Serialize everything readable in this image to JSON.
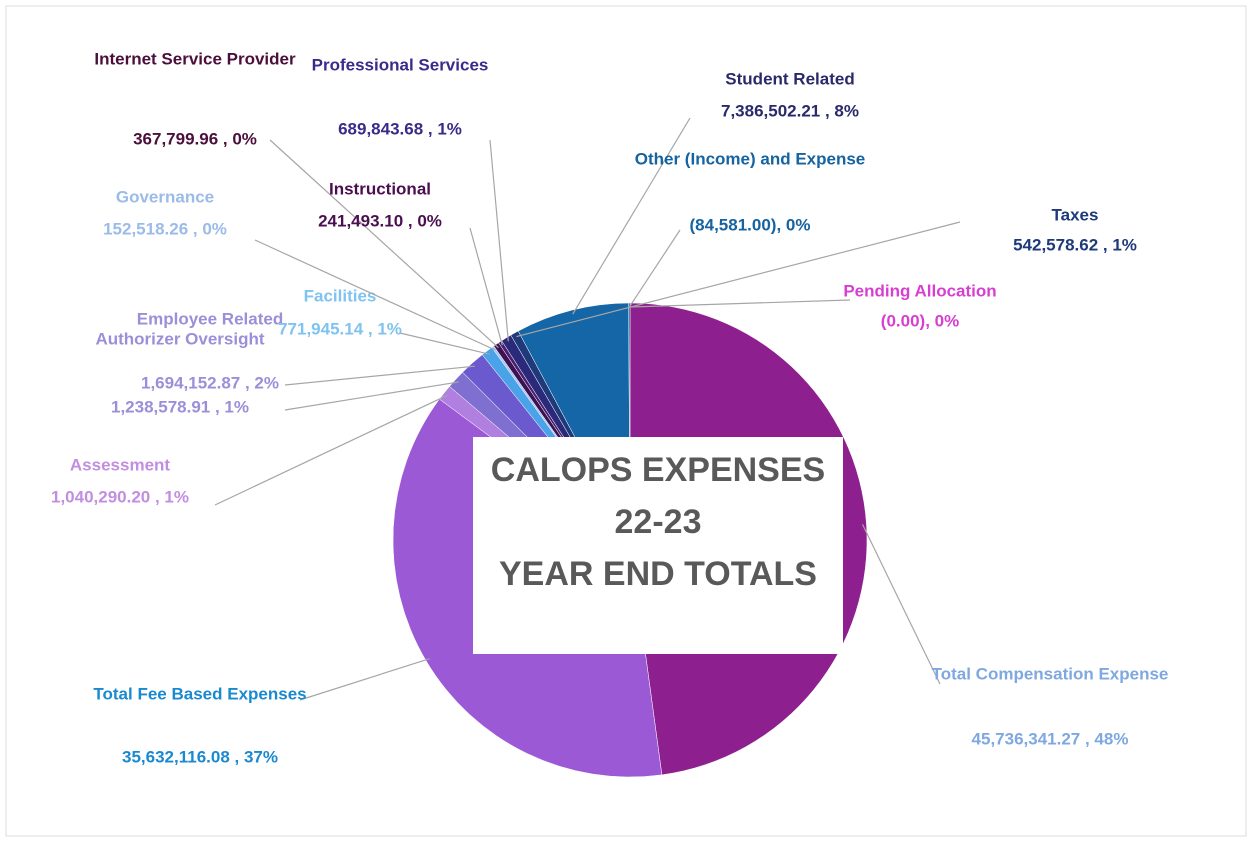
{
  "chart_data": {
    "type": "pie",
    "title": [
      "CALOPS EXPENSES",
      "22-23",
      "YEAR END TOTALS"
    ],
    "categories": [
      "Pending Allocation",
      "Total Compensation Expense",
      "Total Fee Based Expenses",
      "Assessment",
      "Authorizer Oversight",
      "Employee Related",
      "Facilities",
      "Governance",
      "Internet Service Provider",
      "Instructional",
      "Professional Services",
      "Taxes",
      "Student Related",
      "Other (Income) and Expense"
    ],
    "values": [
      0,
      45736341.27,
      35632116.08,
      1040290.2,
      1238578.91,
      1694152.87,
      771945.14,
      152518.26,
      367799.96,
      241493.1,
      689843.68,
      542578.62,
      7386502.21,
      -84581.0
    ],
    "value_labels": [
      "(0.00), 0%",
      "45,736,341.27 , 48%",
      "35,632,116.08 , 37%",
      "1,040,290.20 , 1%",
      "1,238,578.91 , 1%",
      "1,694,152.87 , 2%",
      "771,945.14 , 1%",
      "152,518.26 , 0%",
      "367,799.96 , 0%",
      "241,493.10 , 0%",
      "689,843.68 , 1%",
      "542,578.62 , 1%",
      "7,386,502.21 , 8%",
      "(84,581.00), 0%"
    ],
    "colors": [
      "#d63fd1",
      "#8e1f8e",
      "#9b59d6",
      "#b07fe0",
      "#7e6fd0",
      "#6a5acd",
      "#4aa3e8",
      "#a8c4f0",
      "#3d1255",
      "#4a2070",
      "#2b2a7a",
      "#1f3a7a",
      "#1466a6",
      "#1a5d91"
    ],
    "label_colors": [
      "#d63fd1",
      "#7fa8e0",
      "#1a8ad0",
      "#c28ee0",
      "#9a8fd8",
      "#9a8fd8",
      "#7fc3f0",
      "#9bbbe8",
      "#4a0f3a",
      "#4a0f50",
      "#3b2a8a",
      "#1f3a7a",
      "#2a2a6a",
      "#1563a0"
    ]
  }
}
